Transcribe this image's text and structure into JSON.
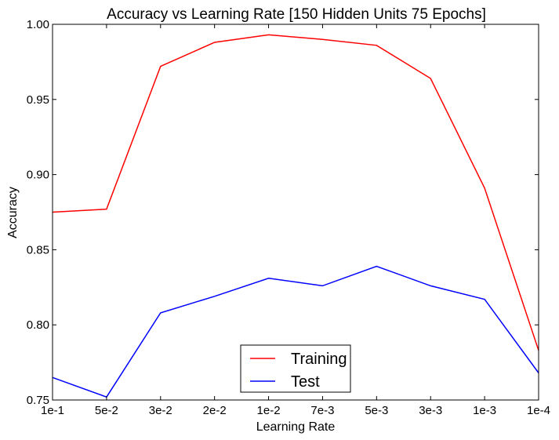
{
  "chart_data": {
    "type": "line",
    "title": "Accuracy vs Learning Rate [150 Hidden Units 75 Epochs]",
    "xlabel": "Learning Rate",
    "ylabel": "Accuracy",
    "categories": [
      "1e-1",
      "5e-2",
      "3e-2",
      "2e-2",
      "1e-2",
      "7e-3",
      "5e-3",
      "3e-3",
      "1e-3",
      "1e-4"
    ],
    "ylim": [
      0.75,
      1.0
    ],
    "yticks": [
      "0.75",
      "0.80",
      "0.85",
      "0.90",
      "0.95",
      "1.00"
    ],
    "grid": false,
    "legend_position": "bottom-center",
    "series": [
      {
        "name": "Training",
        "color": "#ff0000",
        "values": [
          0.875,
          0.877,
          0.972,
          0.988,
          0.993,
          0.99,
          0.986,
          0.964,
          0.891,
          0.783
        ]
      },
      {
        "name": "Test",
        "color": "#0000ff",
        "values": [
          0.765,
          0.752,
          0.808,
          0.819,
          0.831,
          0.826,
          0.839,
          0.826,
          0.817,
          0.768
        ]
      }
    ]
  }
}
